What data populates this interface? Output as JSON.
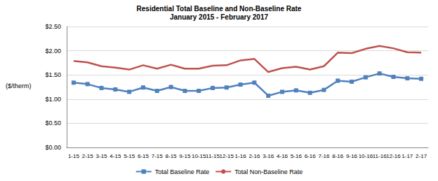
{
  "chart_data": {
    "type": "line",
    "title": "Residential Total Baseline and Non-Baseline Rate",
    "subtitle": "January 2015 - February 2017",
    "y_label": "($/therm)",
    "categories": [
      "1-15",
      "2-15",
      "3-15",
      "4-15",
      "5-15",
      "6-15",
      "7-15",
      "8-15",
      "9-15",
      "10-15",
      "11-15",
      "12-15",
      "1-16",
      "2-16",
      "3-16",
      "4-16",
      "5-16",
      "6-16",
      "7-16",
      "8-16",
      "9-16",
      "10-16",
      "11-16",
      "12-16",
      "1-17",
      "2-17"
    ],
    "series": [
      {
        "name": "Total Baseline Rate",
        "color": "#4f81bd",
        "marker": "square",
        "values": [
          1.34,
          1.31,
          1.23,
          1.2,
          1.15,
          1.24,
          1.17,
          1.25,
          1.17,
          1.17,
          1.23,
          1.24,
          1.3,
          1.34,
          1.07,
          1.15,
          1.18,
          1.13,
          1.19,
          1.38,
          1.36,
          1.45,
          1.53,
          1.46,
          1.43,
          1.42
        ]
      },
      {
        "name": "Total Non-Baseline Rate",
        "color": "#c0504d",
        "marker": "none",
        "values": [
          1.79,
          1.76,
          1.68,
          1.65,
          1.61,
          1.7,
          1.63,
          1.71,
          1.63,
          1.63,
          1.69,
          1.7,
          1.8,
          1.83,
          1.56,
          1.64,
          1.67,
          1.61,
          1.68,
          1.96,
          1.95,
          2.04,
          2.1,
          2.05,
          1.97,
          1.96
        ]
      }
    ],
    "ylim": [
      0,
      2.5
    ],
    "yticks": [
      {
        "value": 0,
        "label": "$0.00"
      },
      {
        "value": 0.5,
        "label": "$0.50"
      },
      {
        "value": 1,
        "label": "$1.00"
      },
      {
        "value": 1.5,
        "label": "$1.50"
      },
      {
        "value": 2,
        "label": "$2.00"
      },
      {
        "value": 2.5,
        "label": "$2.50"
      }
    ],
    "grid": true,
    "legend": "bottom"
  }
}
